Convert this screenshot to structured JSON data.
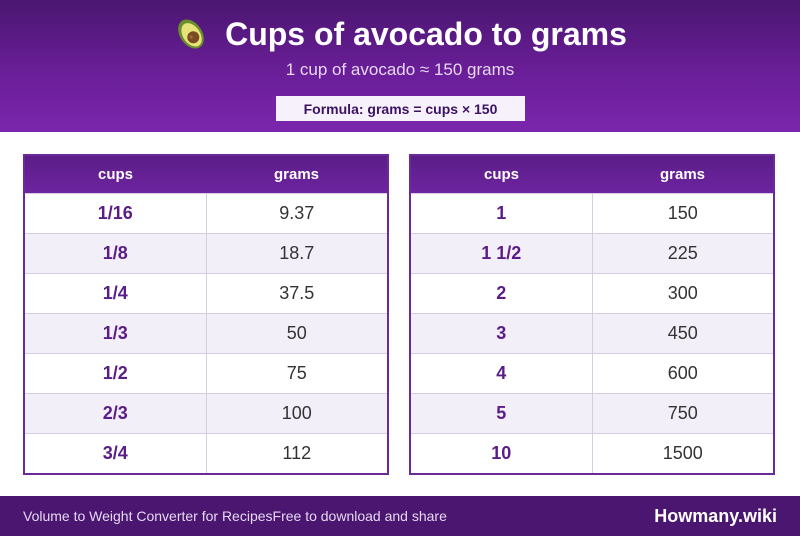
{
  "header": {
    "title": "Cups of avocado to grams",
    "icon": "avocado-icon",
    "subtitle": "1 cup of avocado ≈ 150 grams",
    "formula": "Formula: grams = cups × 150"
  },
  "tables": [
    {
      "col1": "cups",
      "col2": "grams",
      "rows": [
        {
          "cups": "1/16",
          "grams": "9.37"
        },
        {
          "cups": "1/8",
          "grams": "18.7"
        },
        {
          "cups": "1/4",
          "grams": "37.5"
        },
        {
          "cups": "1/3",
          "grams": "50"
        },
        {
          "cups": "1/2",
          "grams": "75"
        },
        {
          "cups": "2/3",
          "grams": "100"
        },
        {
          "cups": "3/4",
          "grams": "112"
        }
      ]
    },
    {
      "col1": "cups",
      "col2": "grams",
      "rows": [
        {
          "cups": "1",
          "grams": "150"
        },
        {
          "cups": "1 1/2",
          "grams": "225"
        },
        {
          "cups": "2",
          "grams": "300"
        },
        {
          "cups": "3",
          "grams": "450"
        },
        {
          "cups": "4",
          "grams": "600"
        },
        {
          "cups": "5",
          "grams": "750"
        },
        {
          "cups": "10",
          "grams": "1500"
        }
      ]
    }
  ],
  "footer": {
    "left": "Volume to Weight Converter for Recipes",
    "middle": "Free to download and share",
    "brand": "Howmany.wiki"
  },
  "colors": {
    "header_purple": "#6a1e98",
    "accent_text": "#5a1d87",
    "footer": "#4a1670"
  }
}
